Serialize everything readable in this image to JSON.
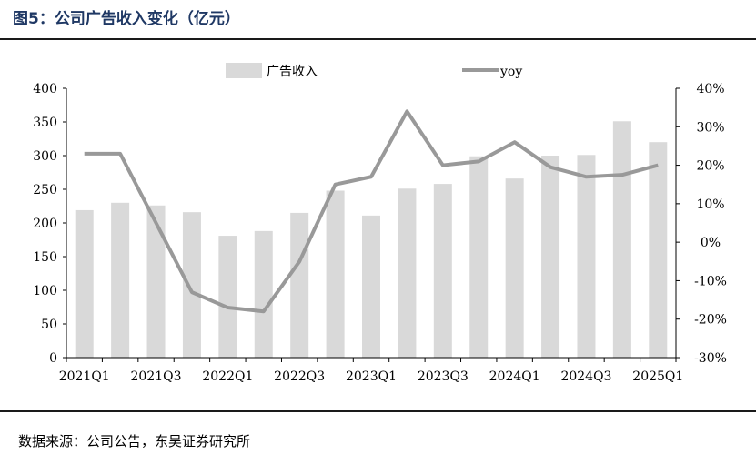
{
  "header": {
    "title": "图5：公司广告收入变化（亿元）"
  },
  "footer": {
    "source": "数据来源：公司公告，东吴证券研究所"
  },
  "colors": {
    "bar": "#d9d9d9",
    "line": "#999999",
    "title": "#1f3864"
  },
  "chart_data": {
    "type": "bar",
    "title": "",
    "categories": [
      "2021Q1",
      "2021Q2",
      "2021Q3",
      "2021Q4",
      "2022Q1",
      "2022Q2",
      "2022Q3",
      "2022Q4",
      "2023Q1",
      "2023Q2",
      "2023Q3",
      "2023Q4",
      "2024Q1",
      "2024Q2",
      "2024Q3",
      "2024Q4",
      "2025Q1"
    ],
    "x_tick_labels": [
      "2021Q1",
      "2021Q3",
      "2022Q1",
      "2022Q3",
      "2023Q1",
      "2023Q3",
      "2024Q1",
      "2024Q3",
      "2025Q1"
    ],
    "series": [
      {
        "name": "广告收入",
        "type": "bar",
        "axis": "left",
        "values": [
          219,
          230,
          226,
          216,
          181,
          188,
          215,
          248,
          211,
          251,
          258,
          299,
          266,
          300,
          301,
          351,
          320
        ]
      },
      {
        "name": "yoy",
        "type": "line",
        "axis": "right",
        "values": [
          23,
          23,
          5,
          -13,
          -17,
          -18,
          -5,
          15,
          17,
          34,
          20,
          21,
          26,
          19.5,
          17,
          17.5,
          20
        ]
      }
    ],
    "y_left": {
      "ylim": [
        0,
        400
      ],
      "ticks": [
        "0",
        "50",
        "100",
        "150",
        "200",
        "250",
        "300",
        "350",
        "400"
      ]
    },
    "y_right": {
      "ylim": [
        -30,
        40
      ],
      "ticks": [
        "-30%",
        "-20%",
        "-10%",
        "0%",
        "10%",
        "20%",
        "30%",
        "40%"
      ]
    },
    "legend": "top",
    "grid": false
  }
}
